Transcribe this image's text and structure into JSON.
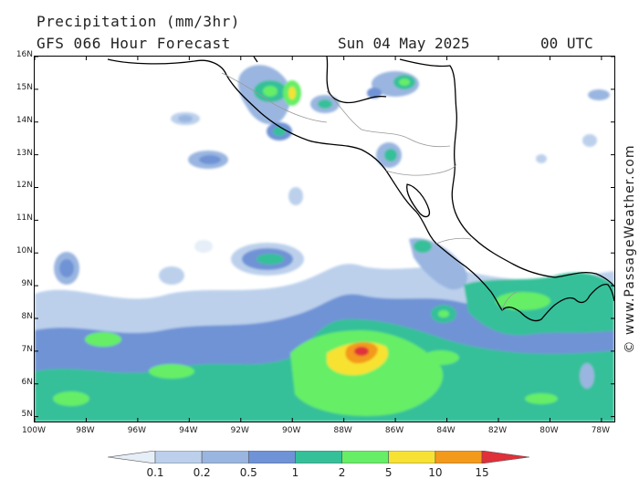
{
  "header": {
    "title": "Precipitation (mm/3hr)",
    "subtitle": "GFS 066 Hour Forecast",
    "date": "Sun 04 May 2025",
    "time": "00 UTC"
  },
  "watermark": "© www.PassageWeather.com",
  "map": {
    "lat_range": [
      4.85,
      16.0
    ],
    "lon_range": [
      -100,
      -77.5
    ],
    "lat_labels": [
      "16N",
      "15N",
      "14N",
      "13N",
      "12N",
      "11N",
      "10N",
      "9N",
      "8N",
      "7N",
      "6N",
      "5N"
    ],
    "lat_values": [
      16,
      15,
      14,
      13,
      12,
      11,
      10,
      9,
      8,
      7,
      6,
      5
    ],
    "lon_labels": [
      "100W",
      "98W",
      "96W",
      "94W",
      "92W",
      "90W",
      "88W",
      "86W",
      "84W",
      "82W",
      "80W",
      "78W"
    ],
    "lon_values": [
      -100,
      -98,
      -96,
      -94,
      -92,
      -90,
      -88,
      -86,
      -84,
      -82,
      -80,
      -78
    ],
    "coastline_color": "#000000",
    "border_color": "#999999"
  },
  "legend": {
    "labels": [
      "0.1",
      "0.2",
      "0.5",
      "1",
      "2",
      "5",
      "10",
      "15"
    ],
    "colors": [
      "#e6eef8",
      "#bcd0ec",
      "#9ab6e0",
      "#6f93d6",
      "#35c09a",
      "#66ee66",
      "#f7e233",
      "#f39a1b",
      "#e0303a"
    ]
  }
}
